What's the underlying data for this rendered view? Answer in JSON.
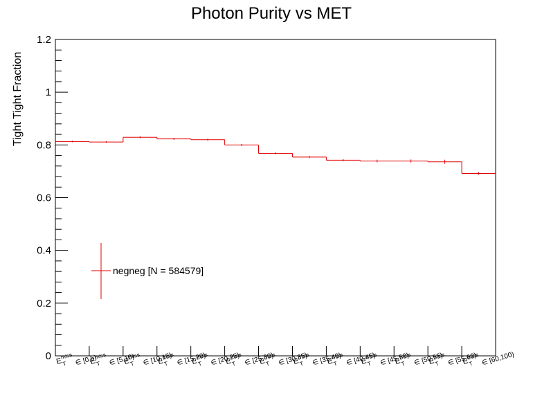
{
  "chart_data": {
    "type": "line",
    "title": "Photon Purity vs MET",
    "xlabel": "",
    "ylabel": "Tight Tight Fraction",
    "ylim": [
      0,
      1.2
    ],
    "y_ticks": [
      "0",
      "0.2",
      "0.4",
      "0.6",
      "0.8",
      "1",
      "1.2"
    ],
    "tick_symbol": {
      "base": "E",
      "sub": "T",
      "sup": "miss"
    },
    "tick_prefix": "∈",
    "categories": [
      "[0,5)",
      "[5,10)",
      "[10,15)",
      "[15,20)",
      "[20,25)",
      "[25,30)",
      "[30,35)",
      "[35,40)",
      "[40,45)",
      "[45,50)",
      "[50,55)",
      "[55,60)",
      "[60,100)"
    ],
    "series": [
      {
        "name": "negneg [N = 584579]",
        "color": "#e00000",
        "values": [
          0.813,
          0.811,
          0.829,
          0.823,
          0.82,
          0.8,
          0.768,
          0.754,
          0.742,
          0.739,
          0.739,
          0.736,
          0.692
        ],
        "errors": [
          0.003,
          0.003,
          0.004,
          0.004,
          0.004,
          0.004,
          0.004,
          0.004,
          0.004,
          0.005,
          0.006,
          0.008,
          0.005
        ]
      }
    ],
    "grid": false,
    "legend_position": "lower-left"
  }
}
